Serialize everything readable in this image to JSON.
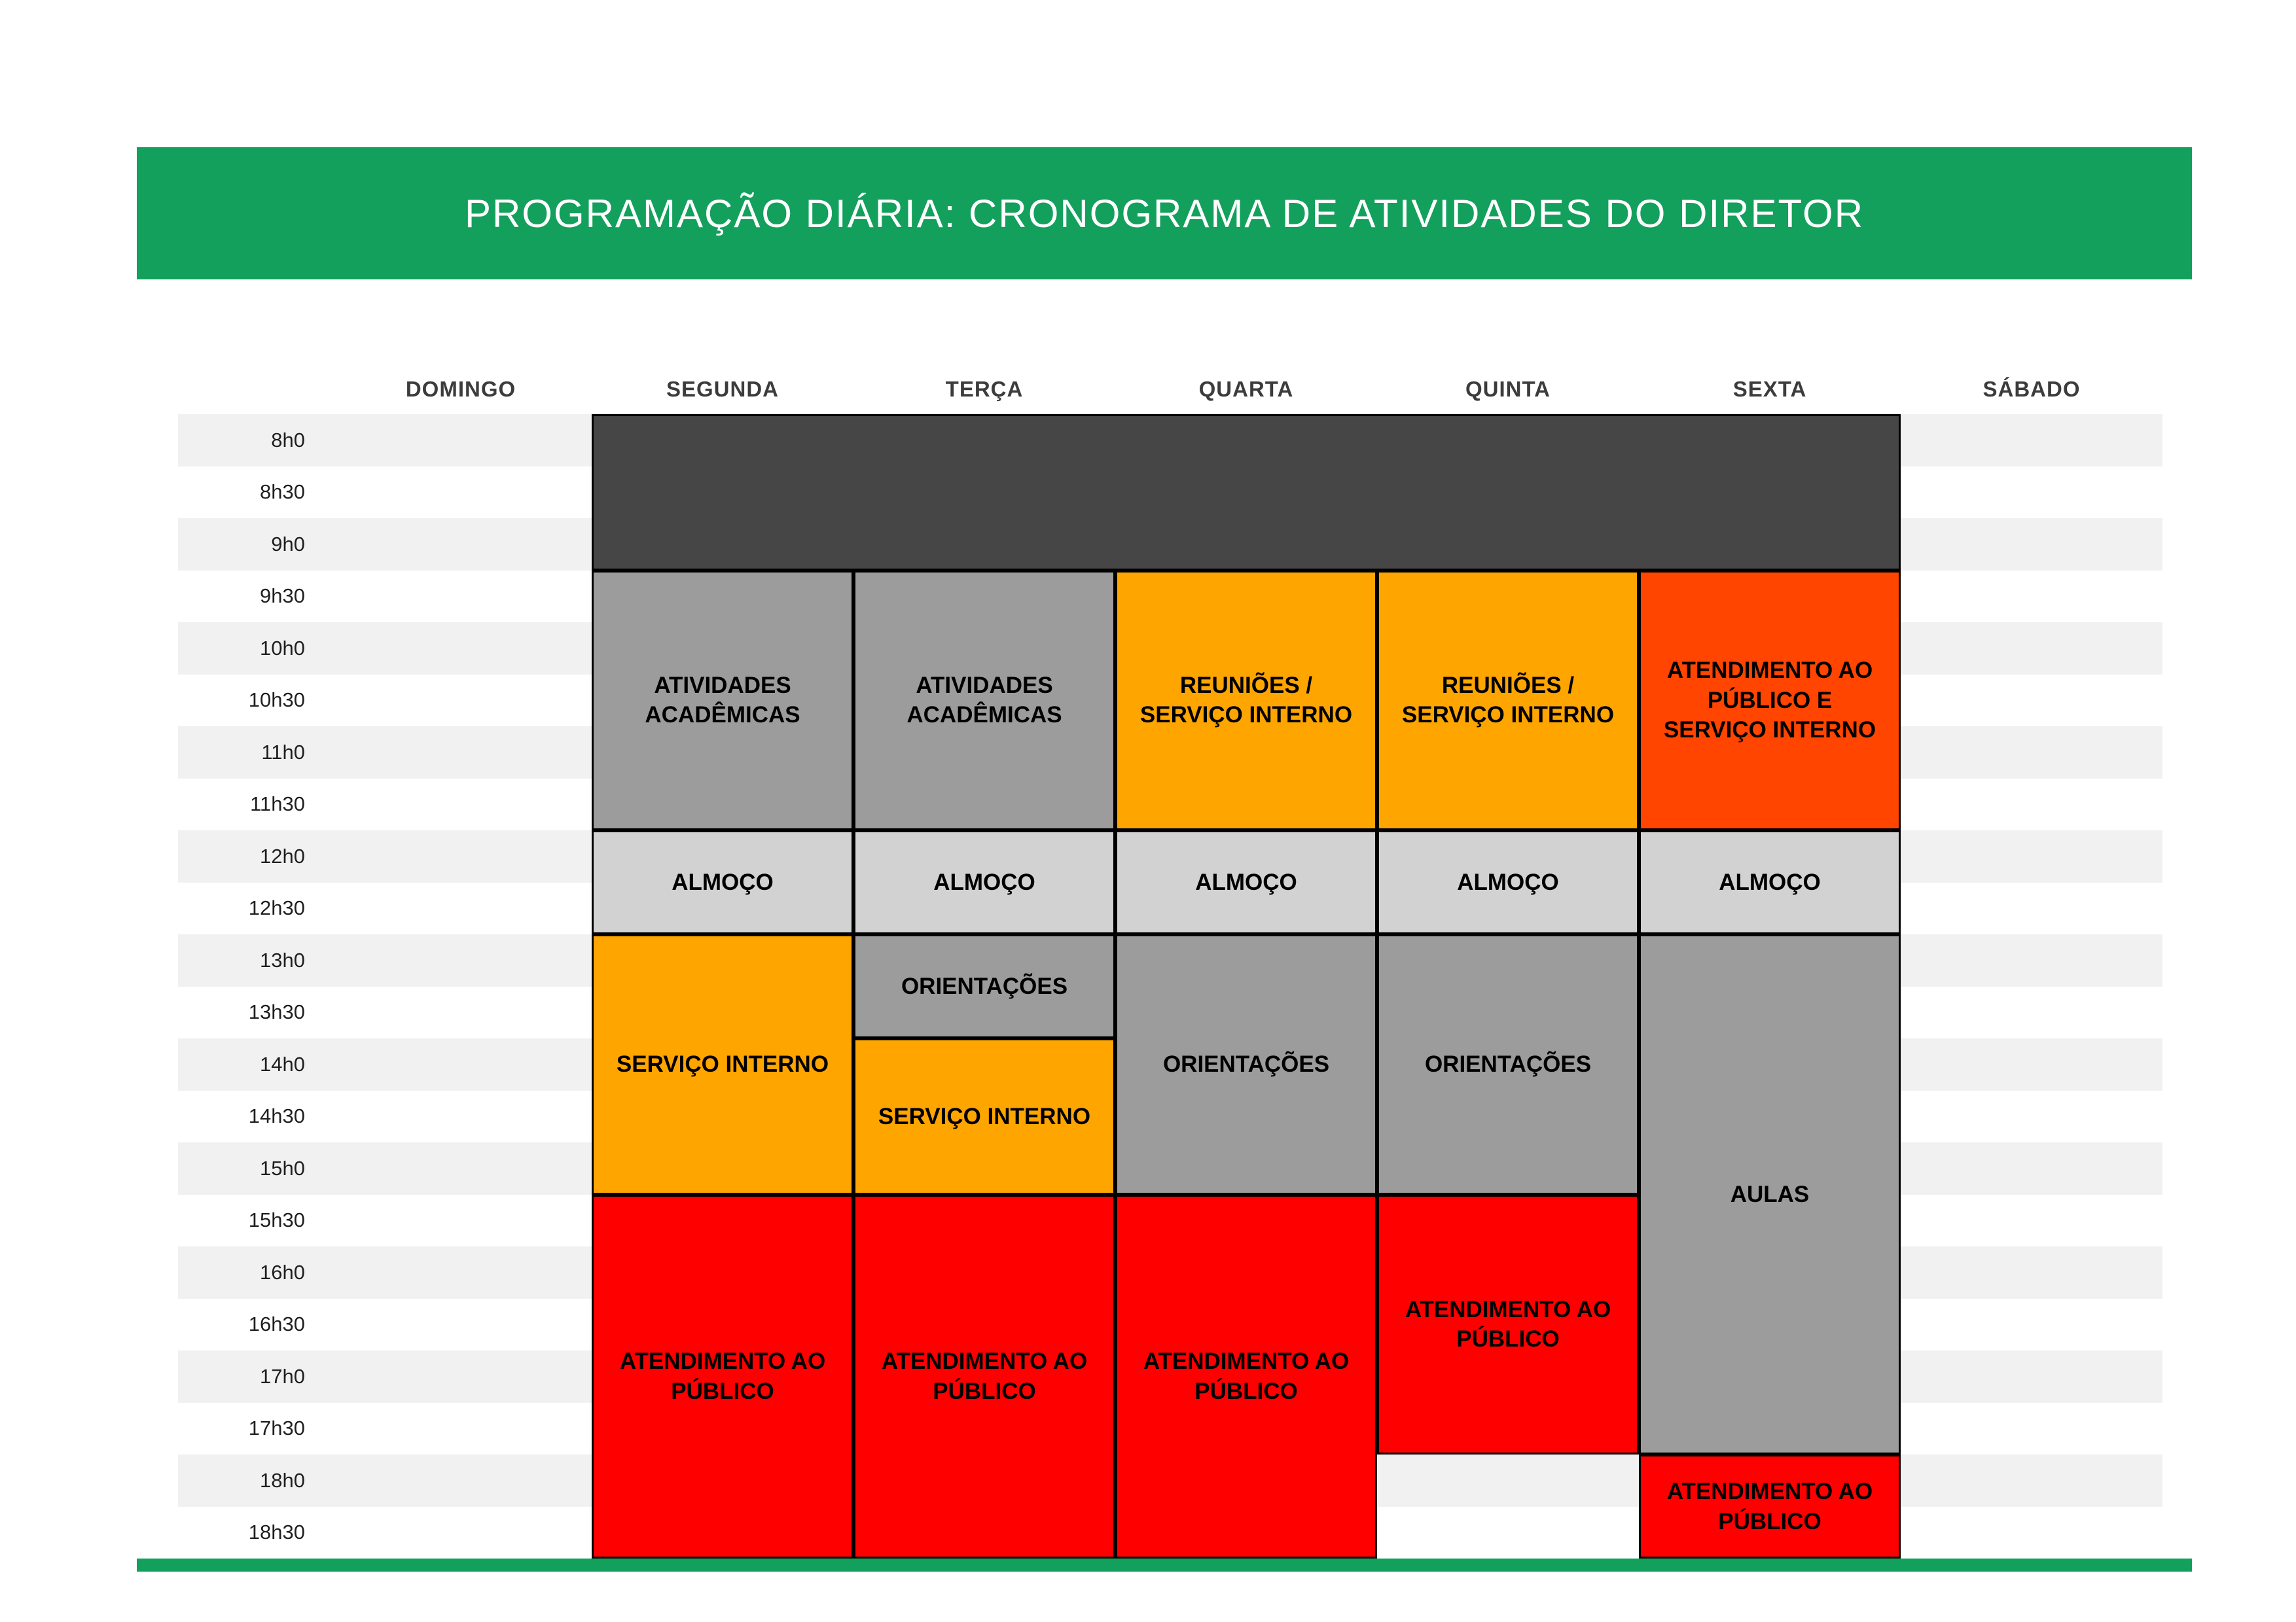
{
  "colors": {
    "green": "#12A05C",
    "dark": "#464646",
    "gray": "#9C9C9C",
    "light_gray": "#D2D2D2",
    "orange": "#FFA500",
    "orange_red": "#FF4500",
    "red": "#FF0000",
    "stripe": "#F1F1F1"
  },
  "chart_data": {
    "type": "table",
    "title": "PROGRAMAÇÃO DIÁRIA: CRONOGRAMA DE ATIVIDADES DO DIRETOR",
    "day_columns": [
      "DOMINGO",
      "SEGUNDA",
      "TERÇA",
      "QUARTA",
      "QUINTA",
      "SEXTA",
      "SÁBADO"
    ],
    "time_rows": [
      "8h0",
      "8h30",
      "9h0",
      "9h30",
      "10h0",
      "10h30",
      "11h0",
      "11h30",
      "12h0",
      "12h30",
      "13h0",
      "13h30",
      "14h0",
      "14h30",
      "15h0",
      "15h30",
      "16h0",
      "16h30",
      "17h0",
      "17h30",
      "18h0",
      "18h30"
    ],
    "blocks": [
      {
        "label": "",
        "day": "SEGUNDA",
        "day_index": 1,
        "day_span": 5,
        "start": "8h0",
        "end": "9h30",
        "row_index": 0,
        "row_span": 3,
        "color": "dark"
      },
      {
        "label": "ATIVIDADES ACADÊMICAS",
        "day": "SEGUNDA",
        "day_index": 1,
        "day_span": 1,
        "start": "9h30",
        "end": "12h0",
        "row_index": 3,
        "row_span": 5,
        "color": "gray"
      },
      {
        "label": "ATIVIDADES ACADÊMICAS",
        "day": "TERÇA",
        "day_index": 2,
        "day_span": 1,
        "start": "9h30",
        "end": "12h0",
        "row_index": 3,
        "row_span": 5,
        "color": "gray"
      },
      {
        "label": "REUNIÕES / SERVIÇO INTERNO",
        "day": "QUARTA",
        "day_index": 3,
        "day_span": 1,
        "start": "9h30",
        "end": "12h0",
        "row_index": 3,
        "row_span": 5,
        "color": "orange"
      },
      {
        "label": "REUNIÕES / SERVIÇO INTERNO",
        "day": "QUINTA",
        "day_index": 4,
        "day_span": 1,
        "start": "9h30",
        "end": "12h0",
        "row_index": 3,
        "row_span": 5,
        "color": "orange"
      },
      {
        "label": "ATENDIMENTO AO PÚBLICO E SERVIÇO INTERNO",
        "day": "SEXTA",
        "day_index": 5,
        "day_span": 1,
        "start": "9h30",
        "end": "12h0",
        "row_index": 3,
        "row_span": 5,
        "color": "orange_red"
      },
      {
        "label": "ALMOÇO",
        "day": "SEGUNDA",
        "day_index": 1,
        "day_span": 1,
        "start": "12h0",
        "end": "13h0",
        "row_index": 8,
        "row_span": 2,
        "color": "light_gray"
      },
      {
        "label": "ALMOÇO",
        "day": "TERÇA",
        "day_index": 2,
        "day_span": 1,
        "start": "12h0",
        "end": "13h0",
        "row_index": 8,
        "row_span": 2,
        "color": "light_gray"
      },
      {
        "label": "ALMOÇO",
        "day": "QUARTA",
        "day_index": 3,
        "day_span": 1,
        "start": "12h0",
        "end": "13h0",
        "row_index": 8,
        "row_span": 2,
        "color": "light_gray"
      },
      {
        "label": "ALMOÇO",
        "day": "QUINTA",
        "day_index": 4,
        "day_span": 1,
        "start": "12h0",
        "end": "13h0",
        "row_index": 8,
        "row_span": 2,
        "color": "light_gray"
      },
      {
        "label": "ALMOÇO",
        "day": "SEXTA",
        "day_index": 5,
        "day_span": 1,
        "start": "12h0",
        "end": "13h0",
        "row_index": 8,
        "row_span": 2,
        "color": "light_gray"
      },
      {
        "label": "SERVIÇO INTERNO",
        "day": "SEGUNDA",
        "day_index": 1,
        "day_span": 1,
        "start": "13h0",
        "end": "15h30",
        "row_index": 10,
        "row_span": 5,
        "color": "orange"
      },
      {
        "label": "ORIENTAÇÕES",
        "day": "TERÇA",
        "day_index": 2,
        "day_span": 1,
        "start": "13h0",
        "end": "14h0",
        "row_index": 10,
        "row_span": 2,
        "color": "gray"
      },
      {
        "label": "SERVIÇO INTERNO",
        "day": "TERÇA",
        "day_index": 2,
        "day_span": 1,
        "start": "14h0",
        "end": "15h30",
        "row_index": 12,
        "row_span": 3,
        "color": "orange"
      },
      {
        "label": "ORIENTAÇÕES",
        "day": "QUARTA",
        "day_index": 3,
        "day_span": 1,
        "start": "13h0",
        "end": "15h30",
        "row_index": 10,
        "row_span": 5,
        "color": "gray"
      },
      {
        "label": "ORIENTAÇÕES",
        "day": "QUINTA",
        "day_index": 4,
        "day_span": 1,
        "start": "13h0",
        "end": "15h30",
        "row_index": 10,
        "row_span": 5,
        "color": "gray"
      },
      {
        "label": "AULAS",
        "day": "SEXTA",
        "day_index": 5,
        "day_span": 1,
        "start": "13h0",
        "end": "18h0",
        "row_index": 10,
        "row_span": 10,
        "color": "gray"
      },
      {
        "label": "ATENDIMENTO AO PÚBLICO",
        "day": "SEGUNDA",
        "day_index": 1,
        "day_span": 1,
        "start": "15h30",
        "row_index": 15,
        "row_span": 7,
        "color": "red"
      },
      {
        "label": "ATENDIMENTO AO PÚBLICO",
        "day": "TERÇA",
        "day_index": 2,
        "day_span": 1,
        "start": "15h30",
        "row_index": 15,
        "row_span": 7,
        "color": "red"
      },
      {
        "label": "ATENDIMENTO AO PÚBLICO",
        "day": "QUARTA",
        "day_index": 3,
        "day_span": 1,
        "start": "15h30",
        "row_index": 15,
        "row_span": 7,
        "color": "red"
      },
      {
        "label": "ATENDIMENTO AO PÚBLICO",
        "day": "QUINTA",
        "day_index": 4,
        "day_span": 1,
        "start": "15h30",
        "end": "18h0",
        "row_index": 15,
        "row_span": 5,
        "color": "red"
      },
      {
        "label": "ATENDIMENTO AO PÚBLICO",
        "day": "SEXTA",
        "day_index": 5,
        "day_span": 1,
        "start": "18h0",
        "row_index": 20,
        "row_span": 2,
        "color": "red"
      }
    ]
  }
}
